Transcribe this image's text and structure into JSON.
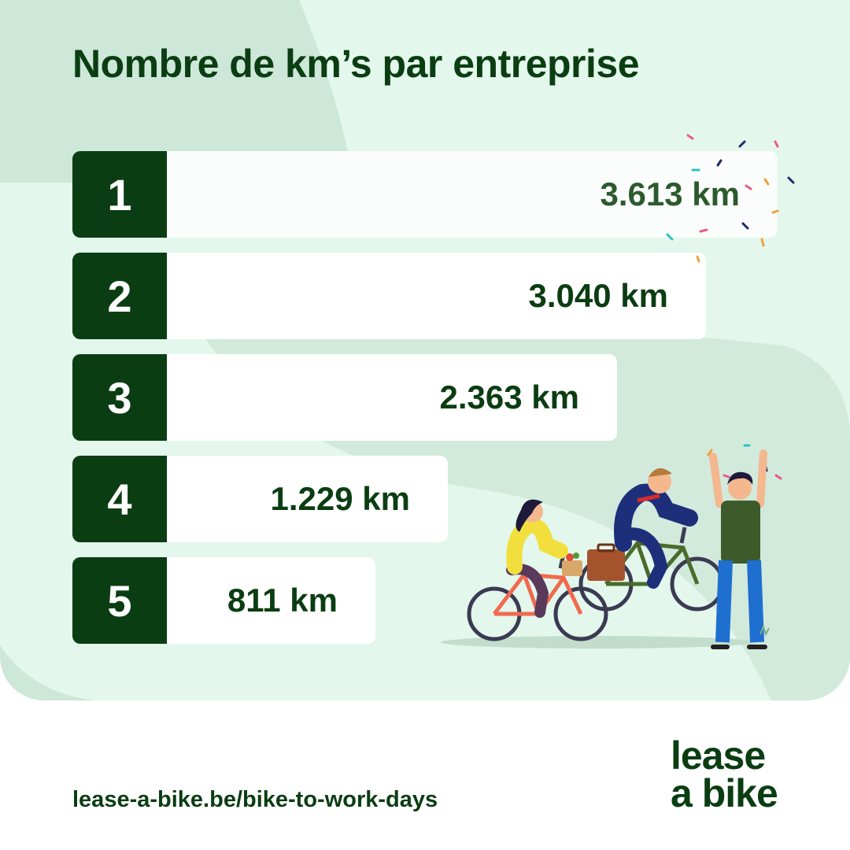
{
  "chart_data": {
    "type": "bar",
    "orientation": "horizontal",
    "title": "Nombre de km’s par entreprise",
    "categories": [
      "1",
      "2",
      "3",
      "4",
      "5"
    ],
    "values": [
      3613,
      3040,
      2363,
      1229,
      811
    ],
    "value_labels": [
      "3.613 km",
      "3.040 km",
      "2.363 km",
      "1.229 km",
      "811 km"
    ],
    "unit": "km",
    "colors": {
      "rank_box": "#0b3d12",
      "bar": "#ffffff",
      "background": "#e3f7ec",
      "text": "#0b3d12"
    }
  },
  "footer": {
    "link": "lease-a-bike.be/bike-to-work-days",
    "logo_line1": "lease",
    "logo_line2": "a bike"
  },
  "illustration": {
    "description_icons": [
      "cyclist-woman-icon",
      "cyclist-man-icon",
      "cheering-man-icon",
      "confetti-icon"
    ]
  }
}
